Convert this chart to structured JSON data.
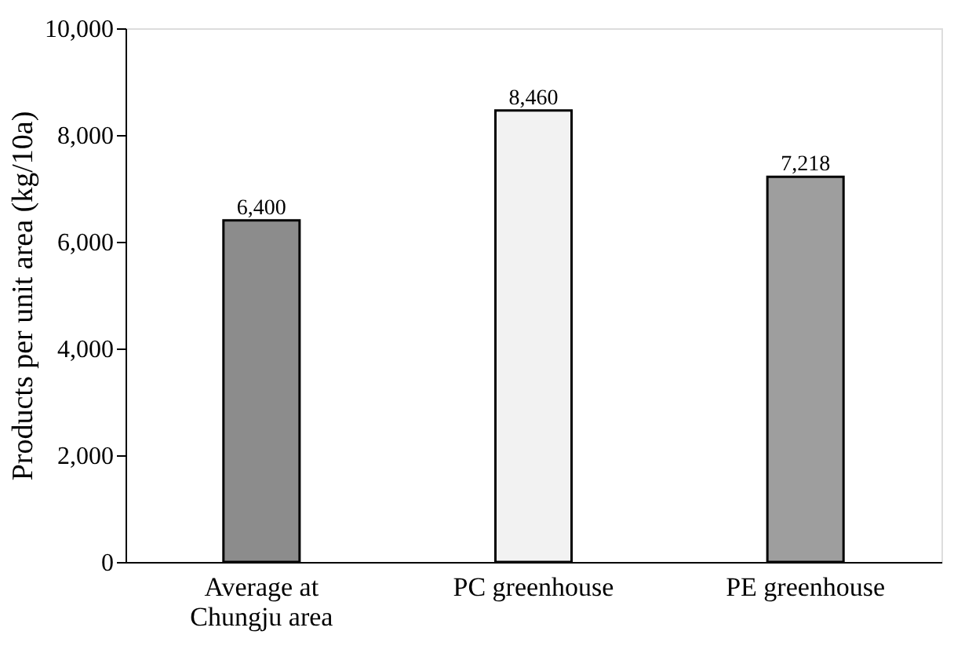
{
  "chart_data": {
    "type": "bar",
    "ylabel": "Products per unit area (kg/10a)",
    "categories": [
      "Average at\nChungju area",
      "PC greenhouse",
      "PE greenhouse"
    ],
    "values": [
      6400,
      8460,
      7218
    ],
    "value_labels": [
      "6,400",
      "8,460",
      "7,218"
    ],
    "colors": [
      "#8c8c8c",
      "#f2f2f2",
      "#9e9e9e"
    ],
    "ylim": [
      0,
      10000
    ],
    "yticks": [
      0,
      {
        "value": 2000,
        "label": "2,000"
      },
      {
        "value": 4000,
        "label": "4,000"
      },
      {
        "value": 6000,
        "label": "6,000"
      },
      {
        "value": 8000,
        "label": "8,000"
      },
      {
        "value": 10000,
        "label": "10,000"
      }
    ],
    "grid": false
  }
}
